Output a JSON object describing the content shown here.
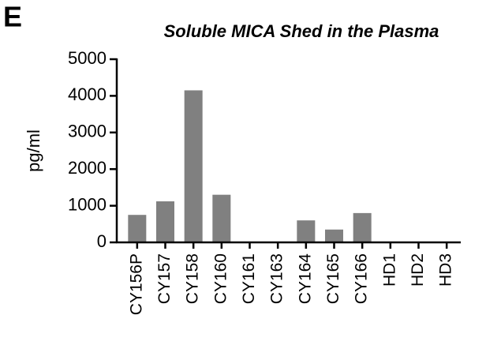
{
  "panel_label": "E",
  "chart_data": {
    "type": "bar",
    "title": "Soluble MICA Shed in the Plasma",
    "y_label": "pg/ml",
    "categories": [
      "CY156P",
      "CY157",
      "CY158",
      "CY160",
      "CY161",
      "CY163",
      "CY164",
      "CY165",
      "CY166",
      "HD1",
      "HD2",
      "HD3"
    ],
    "values": [
      750,
      1120,
      4150,
      1300,
      0,
      0,
      600,
      350,
      800,
      0,
      0,
      0
    ],
    "color": "#808080",
    "ylim": [
      0,
      5000
    ],
    "yticks": [
      0,
      1000,
      2000,
      3000,
      4000,
      5000
    ],
    "grid": false
  }
}
